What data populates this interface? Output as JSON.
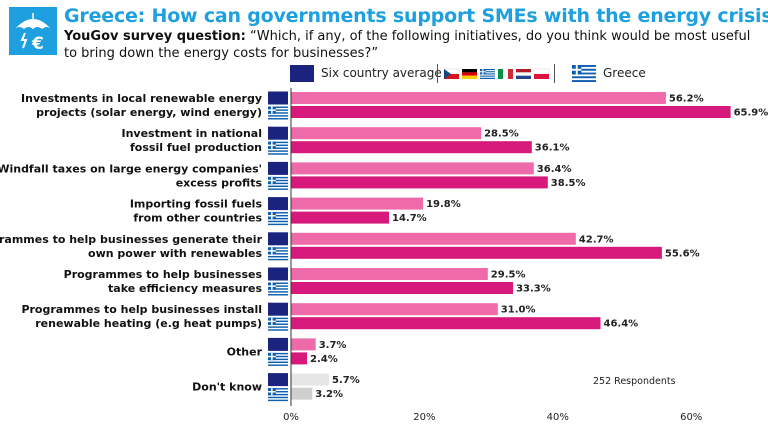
{
  "header": {
    "title": "Greece: How can governments support SMEs with the energy crisis?",
    "subtitle_bold": "YouGov survey question:",
    "subtitle_text": " “Which, if any, of the following initiatives, do you think would be most useful to bring down the energy costs for businesses?”"
  },
  "legend": {
    "avg_label": "Six country average",
    "greece_label": "Greece"
  },
  "respondents": "252 Respondents",
  "colors": {
    "brand": "#1ea0e0",
    "avg_bar": "#ef6aa8",
    "greece_bar": "#d6197a",
    "other_avg_bar": "#e6e6e6",
    "other_greece_bar": "#cfcfcf",
    "eu_blue": "#1a237e",
    "greece_flag_blue": "#0d5eaf"
  },
  "chart_data": {
    "type": "bar",
    "orientation": "horizontal",
    "categories": [
      [
        "Investments in local renewable energy",
        "projects (solar energy, wind energy)"
      ],
      [
        "Investment in national",
        "fossil fuel production"
      ],
      [
        "Windfall taxes on large energy companies'",
        "excess profits"
      ],
      [
        "Importing fossil fuels",
        "from other countries"
      ],
      [
        "Programmes to help businesses generate their",
        "own power with renewables"
      ],
      [
        "Programmes to help businesses",
        "take efficiency measures"
      ],
      [
        "Programmes to help businesses install",
        "renewable heating (e.g heat pumps)"
      ],
      [
        "Other"
      ],
      [
        "Don't know"
      ]
    ],
    "series": [
      {
        "name": "Six country average",
        "values": [
          56.2,
          28.5,
          36.4,
          19.8,
          42.7,
          29.5,
          31.0,
          3.7,
          5.7
        ]
      },
      {
        "name": "Greece",
        "values": [
          65.9,
          36.1,
          38.5,
          14.7,
          55.6,
          33.3,
          46.4,
          2.4,
          3.2
        ]
      }
    ],
    "value_labels": [
      [
        "56.2%",
        "28.5%",
        "36.4%",
        "19.8%",
        "42.7%",
        "29.5%",
        "31.0%",
        "3.7%",
        "5.7%"
      ],
      [
        "65.9%",
        "36.1%",
        "38.5%",
        "14.7%",
        "55.6%",
        "33.3%",
        "46.4%",
        "2.4%",
        "3.2%"
      ]
    ],
    "x_ticks": [
      0,
      20,
      40,
      60
    ],
    "x_tick_labels": [
      "0%",
      "20%",
      "40%",
      "60%"
    ],
    "xlim": [
      0,
      66
    ],
    "grid": false,
    "legend_position": "top"
  }
}
